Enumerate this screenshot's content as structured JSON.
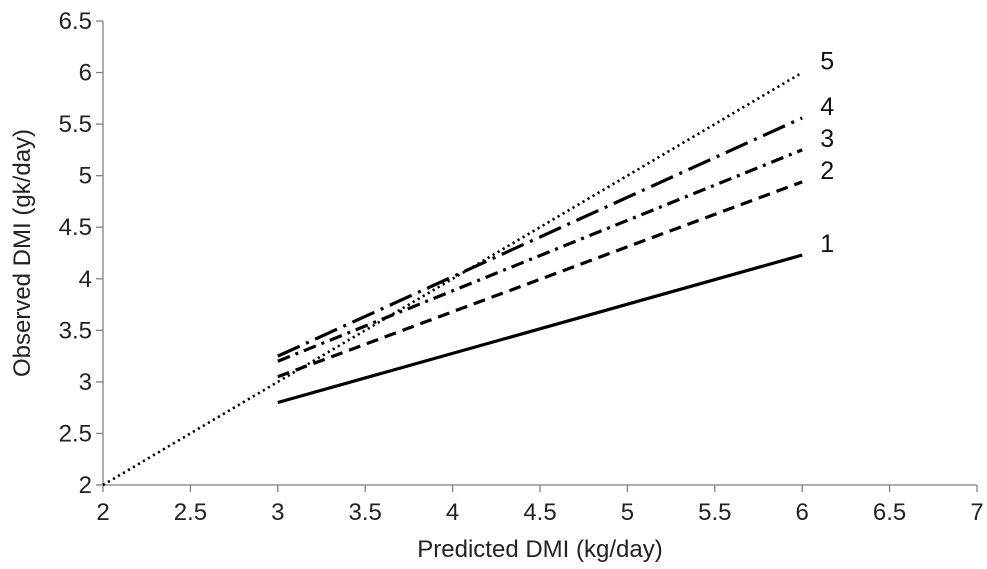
{
  "chart_data": {
    "type": "line",
    "title": "",
    "xlabel": "Predicted DMI (kg/day)",
    "ylabel": "Observed DMI (gk/day)",
    "xlim": [
      2,
      7
    ],
    "ylim": [
      2,
      6.5
    ],
    "x_ticks": [
      "2",
      "2.5",
      "3",
      "3.5",
      "4",
      "4.5",
      "5",
      "5.5",
      "6",
      "6.5",
      "7"
    ],
    "y_ticks": [
      "2",
      "2.5",
      "3",
      "3.5",
      "4",
      "4.5",
      "5",
      "5.5",
      "6",
      "6.5"
    ],
    "grid": false,
    "series": [
      {
        "label": "1",
        "style": "solid",
        "x": [
          3,
          6
        ],
        "y": [
          2.8,
          4.23
        ]
      },
      {
        "label": "2",
        "style": "dash",
        "x": [
          3,
          6
        ],
        "y": [
          3.05,
          4.94
        ]
      },
      {
        "label": "3",
        "style": "dash-dot",
        "x": [
          3,
          6
        ],
        "y": [
          3.2,
          5.25
        ]
      },
      {
        "label": "4",
        "style": "long-dash-dot",
        "x": [
          3,
          6
        ],
        "y": [
          3.25,
          5.56
        ]
      },
      {
        "label": "5",
        "style": "dotted",
        "x": [
          2,
          6
        ],
        "y": [
          2,
          6
        ]
      }
    ]
  }
}
